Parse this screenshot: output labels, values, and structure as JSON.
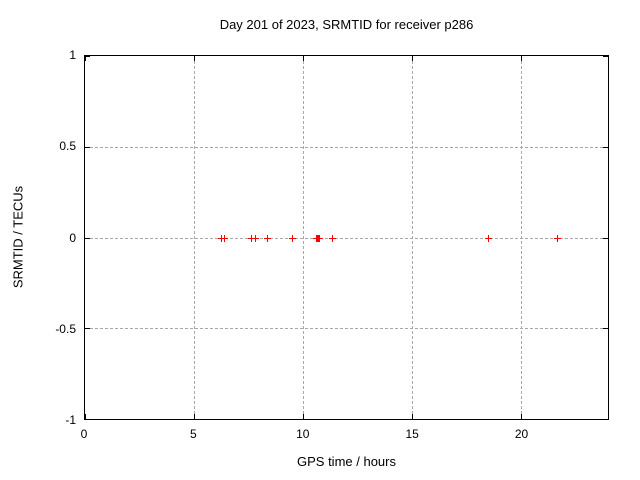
{
  "chart_data": {
    "type": "scatter",
    "title": "Day 201 of 2023, SRMTID for receiver p286",
    "xlabel": "GPS time / hours",
    "ylabel": "SRMTID / TECUs",
    "xlim": [
      0,
      24
    ],
    "ylim": [
      -1,
      1
    ],
    "grid": true,
    "legend": "none",
    "xticks": [
      {
        "value": 0,
        "label": "0"
      },
      {
        "value": 5,
        "label": "5"
      },
      {
        "value": 10,
        "label": "10"
      },
      {
        "value": 15,
        "label": "15"
      },
      {
        "value": 20,
        "label": "20"
      }
    ],
    "yticks": [
      {
        "value": 1,
        "label": "1"
      },
      {
        "value": 0.5,
        "label": "0.5"
      },
      {
        "value": 0,
        "label": "0"
      },
      {
        "value": -0.5,
        "label": "-0.5"
      },
      {
        "value": -1,
        "label": "-1"
      }
    ],
    "series": [
      {
        "name": "SRMTID",
        "marker": "plus",
        "color": "#ff0000",
        "points": [
          {
            "x": 6.22,
            "y": 0
          },
          {
            "x": 6.4,
            "y": 0
          },
          {
            "x": 7.62,
            "y": 0
          },
          {
            "x": 7.8,
            "y": 0
          },
          {
            "x": 8.35,
            "y": 0
          },
          {
            "x": 9.52,
            "y": 0
          },
          {
            "x": 10.6,
            "y": 0
          },
          {
            "x": 10.65,
            "y": 0
          },
          {
            "x": 10.7,
            "y": 0
          },
          {
            "x": 10.75,
            "y": 0
          },
          {
            "x": 11.35,
            "y": 0
          },
          {
            "x": 18.51,
            "y": 0
          },
          {
            "x": 21.64,
            "y": 0
          }
        ]
      }
    ]
  },
  "colors": {
    "background": "#ffffff",
    "axis": "#000000",
    "grid": "#a8a8a8",
    "marker": "#ff0000"
  }
}
